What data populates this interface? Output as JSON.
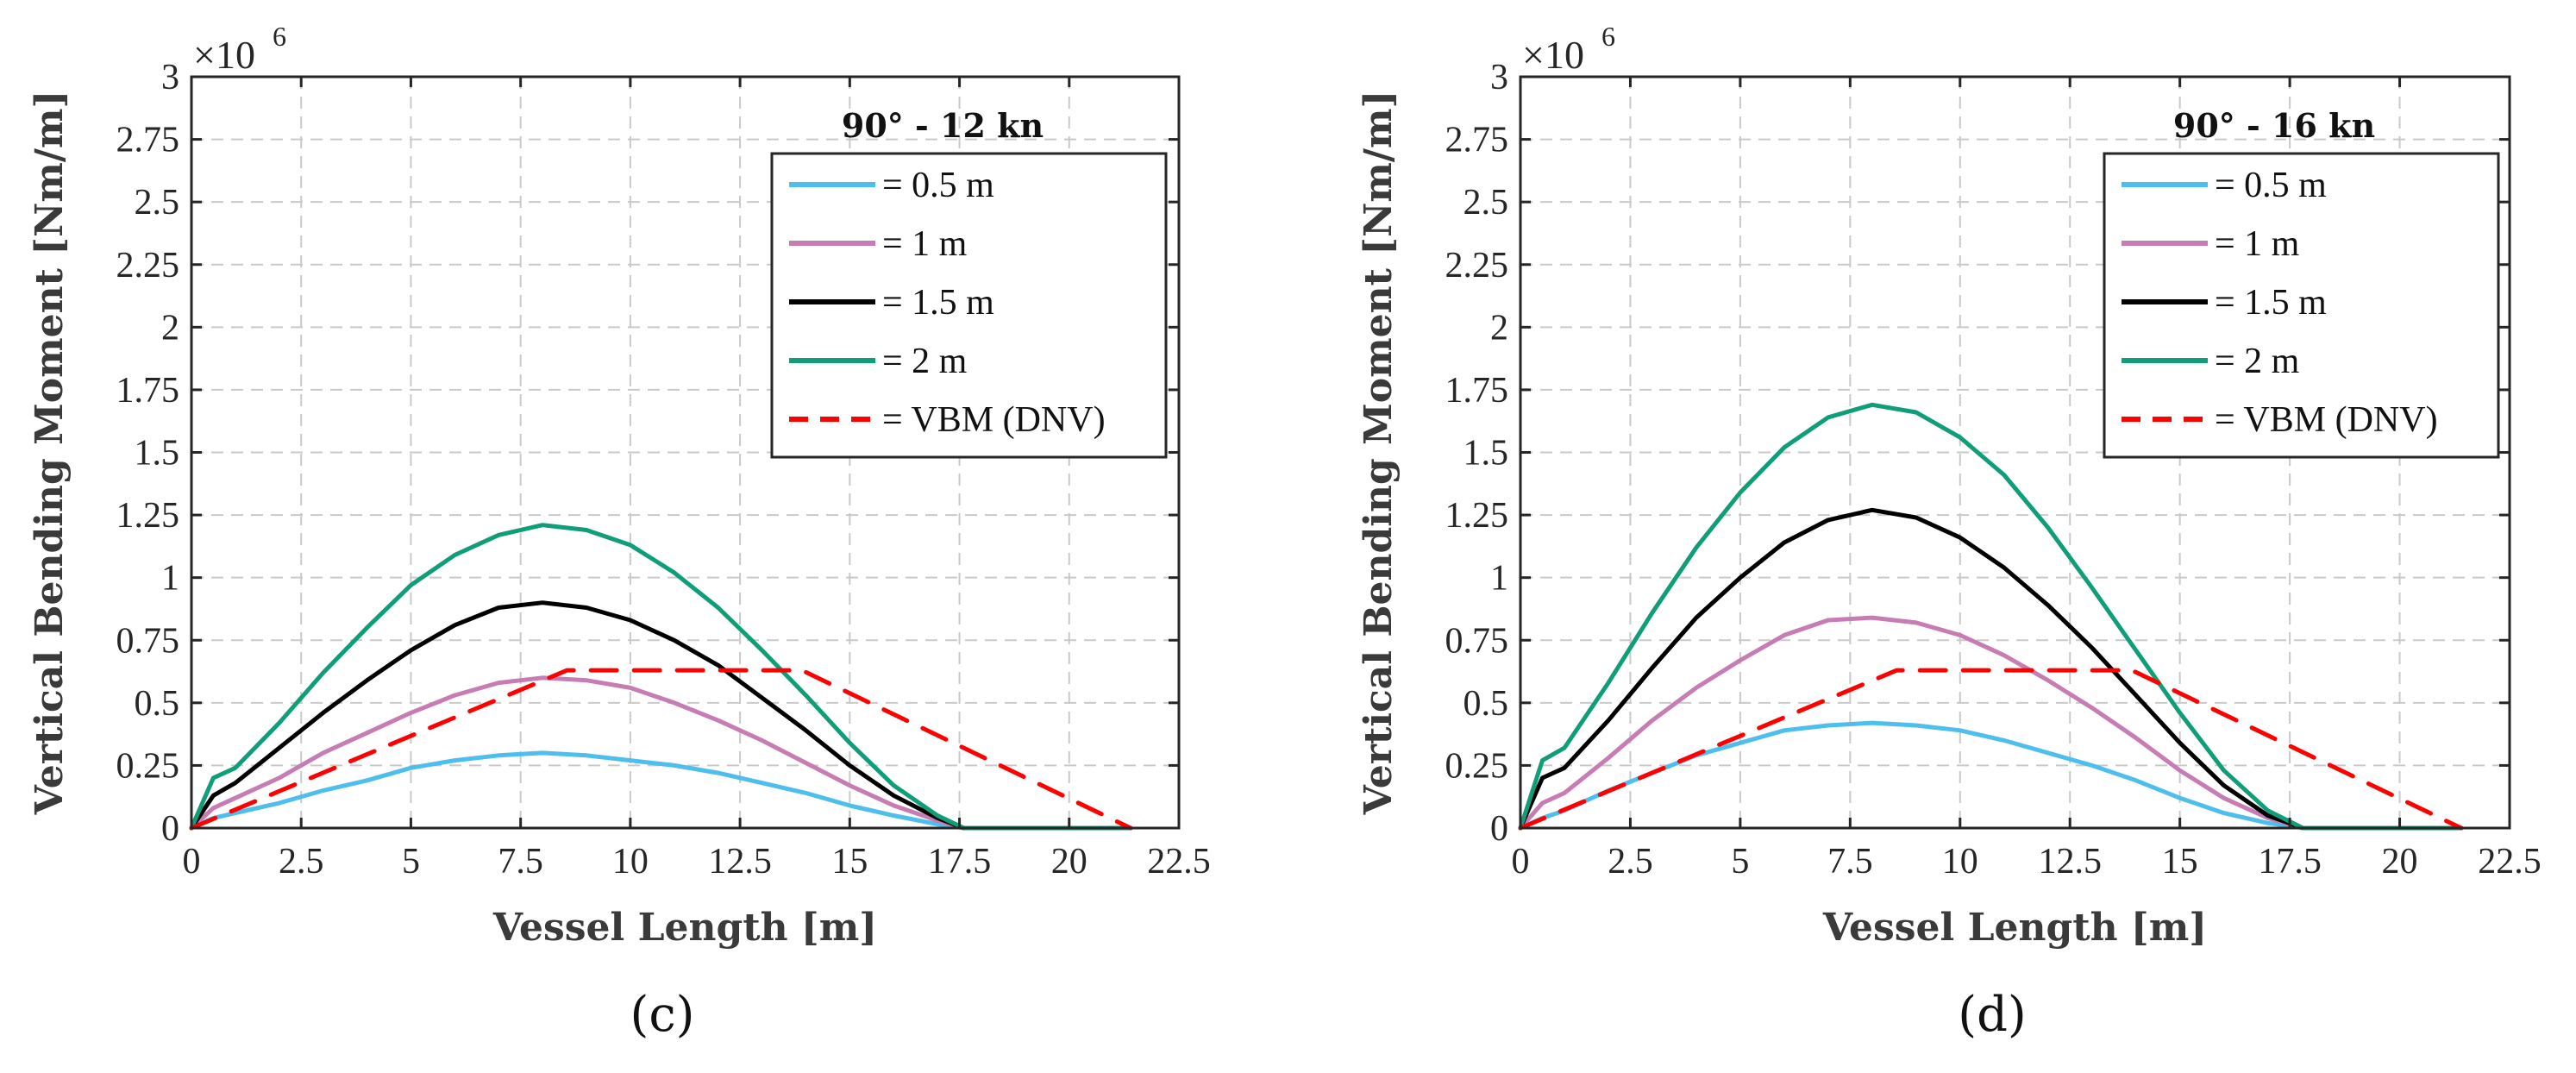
{
  "chart_data": [
    {
      "type": "line",
      "panel_label": "(c)",
      "legend_title": "90° - 12 kn",
      "xlabel": "Vessel Length [m]",
      "ylabel": "Vertical Bending Moment [Nm/m]",
      "y_exponent_label": "×10",
      "y_exponent_power": "6",
      "xlim": [
        0,
        22.5
      ],
      "ylim": [
        0,
        3
      ],
      "grid": true,
      "legend_position": "top-right",
      "x_ticks": [
        0,
        2.5,
        5,
        7.5,
        10,
        12.5,
        15,
        17.5,
        20,
        22.5
      ],
      "x_tick_labels": [
        "0",
        "2.5",
        "5",
        "7.5",
        "10",
        "12.5",
        "15",
        "17.5",
        "20",
        "22.5"
      ],
      "y_ticks": [
        0,
        0.25,
        0.5,
        0.75,
        1,
        1.25,
        1.5,
        1.75,
        2,
        2.25,
        2.5,
        2.75,
        3
      ],
      "y_tick_labels": [
        "0",
        "0.25",
        "0.5",
        "0.75",
        "1",
        "1.25",
        "1.5",
        "1.75",
        "2",
        "2.25",
        "2.5",
        "2.75",
        "3"
      ],
      "series": [
        {
          "name": "= 0.5 m",
          "color": "#4DBEEE",
          "dash": "solid",
          "x": [
            0,
            0.5,
            1,
            2,
            3,
            4,
            5,
            6,
            7,
            8,
            9,
            10,
            11,
            12,
            13,
            14,
            15,
            16,
            17,
            17.6,
            18,
            21.4
          ],
          "y": [
            0,
            0.04,
            0.06,
            0.1,
            0.15,
            0.19,
            0.24,
            0.27,
            0.29,
            0.3,
            0.29,
            0.27,
            0.25,
            0.22,
            0.18,
            0.14,
            0.09,
            0.05,
            0.015,
            0,
            0,
            0
          ]
        },
        {
          "name": "= 1 m",
          "color": "#C77CB3",
          "dash": "solid",
          "x": [
            0,
            0.5,
            1,
            2,
            3,
            4,
            5,
            6,
            7,
            8,
            9,
            10,
            11,
            12,
            13,
            14,
            15,
            16,
            17,
            17.6,
            18,
            21.4
          ],
          "y": [
            0,
            0.08,
            0.12,
            0.2,
            0.3,
            0.38,
            0.46,
            0.53,
            0.58,
            0.6,
            0.59,
            0.56,
            0.5,
            0.43,
            0.35,
            0.26,
            0.17,
            0.09,
            0.03,
            0,
            0,
            0
          ]
        },
        {
          "name": "= 1.5 m",
          "color": "#000000",
          "dash": "solid",
          "x": [
            0,
            0.5,
            1,
            2,
            3,
            4,
            5,
            6,
            7,
            8,
            9,
            10,
            11,
            12,
            13,
            14,
            15,
            16,
            17,
            17.6,
            18,
            21.4
          ],
          "y": [
            0,
            0.13,
            0.18,
            0.32,
            0.46,
            0.59,
            0.71,
            0.81,
            0.88,
            0.9,
            0.88,
            0.83,
            0.75,
            0.65,
            0.52,
            0.39,
            0.25,
            0.13,
            0.04,
            0,
            0,
            0
          ]
        },
        {
          "name": "= 2 m",
          "color": "#0F9E78",
          "dash": "solid",
          "x": [
            0,
            0.5,
            1,
            2,
            3,
            4,
            5,
            6,
            7,
            8,
            9,
            10,
            11,
            12,
            13,
            14,
            15,
            16,
            17,
            17.6,
            18,
            21.4
          ],
          "y": [
            0,
            0.2,
            0.24,
            0.42,
            0.62,
            0.8,
            0.97,
            1.09,
            1.17,
            1.21,
            1.19,
            1.13,
            1.02,
            0.88,
            0.71,
            0.53,
            0.34,
            0.17,
            0.05,
            0,
            0,
            0
          ]
        },
        {
          "name": "= VBM (DNV)",
          "color": "#FF0000",
          "dash": "dashed",
          "x": [
            0,
            8.56,
            13.91,
            21.4
          ],
          "y": [
            0,
            0.63,
            0.63,
            0
          ]
        }
      ]
    },
    {
      "type": "line",
      "panel_label": "(d)",
      "legend_title": "90° - 16 kn",
      "xlabel": "Vessel Length [m]",
      "ylabel": "Vertical Bending Moment [Nm/m]",
      "y_exponent_label": "×10",
      "y_exponent_power": "6",
      "xlim": [
        0,
        22.5
      ],
      "ylim": [
        0,
        3
      ],
      "grid": true,
      "legend_position": "top-right",
      "x_ticks": [
        0,
        2.5,
        5,
        7.5,
        10,
        12.5,
        15,
        17.5,
        20,
        22.5
      ],
      "x_tick_labels": [
        "0",
        "2.5",
        "5",
        "7.5",
        "10",
        "12.5",
        "15",
        "17.5",
        "20",
        "22.5"
      ],
      "y_ticks": [
        0,
        0.25,
        0.5,
        0.75,
        1,
        1.25,
        1.5,
        1.75,
        2,
        2.25,
        2.5,
        2.75,
        3
      ],
      "y_tick_labels": [
        "0",
        "0.25",
        "0.5",
        "0.75",
        "1",
        "1.25",
        "1.5",
        "1.75",
        "2",
        "2.25",
        "2.5",
        "2.75",
        "3"
      ],
      "series": [
        {
          "name": "= 0.5 m",
          "color": "#4DBEEE",
          "dash": "solid",
          "x": [
            0,
            0.5,
            1,
            2,
            3,
            4,
            5,
            6,
            7,
            8,
            9,
            10,
            11,
            12,
            13,
            14,
            15,
            16,
            17,
            17.8,
            18,
            21.4
          ],
          "y": [
            0,
            0.04,
            0.07,
            0.15,
            0.22,
            0.29,
            0.34,
            0.39,
            0.41,
            0.42,
            0.41,
            0.39,
            0.35,
            0.3,
            0.25,
            0.19,
            0.12,
            0.06,
            0.02,
            0,
            0,
            0
          ]
        },
        {
          "name": "= 1 m",
          "color": "#C77CB3",
          "dash": "solid",
          "x": [
            0,
            0.5,
            1,
            2,
            3,
            4,
            5,
            6,
            7,
            8,
            9,
            10,
            11,
            12,
            13,
            14,
            15,
            16,
            17,
            17.8,
            18,
            21.4
          ],
          "y": [
            0,
            0.1,
            0.14,
            0.28,
            0.43,
            0.56,
            0.67,
            0.77,
            0.83,
            0.84,
            0.82,
            0.77,
            0.69,
            0.59,
            0.48,
            0.36,
            0.23,
            0.12,
            0.04,
            0,
            0,
            0
          ]
        },
        {
          "name": "= 1.5 m",
          "color": "#000000",
          "dash": "solid",
          "x": [
            0,
            0.5,
            1,
            2,
            3,
            4,
            5,
            6,
            7,
            8,
            9,
            10,
            11,
            12,
            13,
            14,
            15,
            16,
            17,
            17.8,
            18,
            21.4
          ],
          "y": [
            0,
            0.2,
            0.24,
            0.43,
            0.64,
            0.84,
            1.0,
            1.14,
            1.23,
            1.27,
            1.24,
            1.16,
            1.04,
            0.89,
            0.72,
            0.53,
            0.34,
            0.17,
            0.05,
            0,
            0,
            0
          ]
        },
        {
          "name": "= 2 m",
          "color": "#0F9E78",
          "dash": "solid",
          "x": [
            0,
            0.5,
            1,
            2,
            3,
            4,
            5,
            6,
            7,
            8,
            9,
            10,
            11,
            12,
            13,
            14,
            15,
            16,
            17,
            17.8,
            18,
            21.4
          ],
          "y": [
            0,
            0.27,
            0.32,
            0.58,
            0.86,
            1.12,
            1.34,
            1.52,
            1.64,
            1.69,
            1.66,
            1.56,
            1.41,
            1.2,
            0.96,
            0.71,
            0.46,
            0.23,
            0.07,
            0,
            0,
            0
          ]
        },
        {
          "name": "= VBM (DNV)",
          "color": "#FF0000",
          "dash": "dashed",
          "x": [
            0,
            8.56,
            13.91,
            21.4
          ],
          "y": [
            0,
            0.63,
            0.63,
            0
          ]
        }
      ]
    }
  ]
}
